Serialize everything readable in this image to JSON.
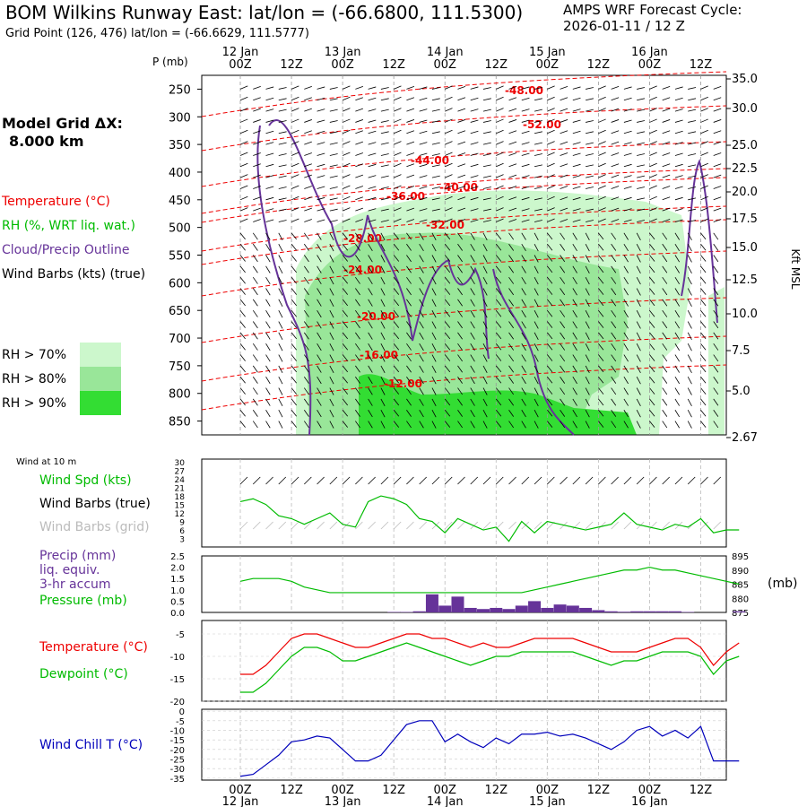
{
  "header": {
    "title": "BOM Wilkins Runway East:  lat/lon = (-66.6800, 111.5300)",
    "cycle_line1": "AMPS WRF Forecast Cycle:",
    "cycle_line2": "2026-01-11 / 12  Z",
    "gridpoint": "Grid Point (126, 476) lat/lon = (-66.6629, 111.5777)"
  },
  "model_grid": {
    "line1": "Model Grid ΔX:",
    "line2": "8.000 km"
  },
  "legend": {
    "temperature": "Temperature (°C)",
    "rh": "RH (%, WRT liq. wat.)",
    "cloud": "Cloud/Precip Outline",
    "wind": "Wind Barbs (kts) (true)",
    "rh70": "RH > 70%",
    "rh80": "RH > 80%",
    "rh90": "RH > 90%"
  },
  "colors": {
    "rh70": "#ccf7cc",
    "rh80": "#99e699",
    "rh90": "#33dd33",
    "temperature": "#ee0000",
    "rh_text": "#00bb00",
    "cloud": "#663399",
    "wind_spd": "#00bb00",
    "precip": "#663399",
    "dewpoint": "#00bb00",
    "windchill": "#0000bb"
  },
  "time_axis": {
    "hour_labels": [
      "00Z",
      "12Z",
      "00Z",
      "12Z",
      "00Z",
      "12Z",
      "00Z",
      "12Z",
      "00Z",
      "12Z"
    ],
    "date_labels": [
      "12 Jan",
      "13 Jan",
      "14 Jan",
      "15 Jan",
      "16 Jan"
    ]
  },
  "panels": {
    "wind10_header": "Wind at 10 m",
    "wind_spd": "Wind Spd (kts)",
    "wind_barbs_true": "Wind Barbs (true)",
    "wind_barbs_grid": "Wind Barbs (grid)",
    "precip1": "Precip (mm)",
    "precip2": "liq. equiv.",
    "precip3": "3-hr accum",
    "pressure": "Pressure (mb)",
    "pressure_unit": "(mb)",
    "temp": "Temperature (°C)",
    "dew": "Dewpoint (°C)",
    "chill": "Wind Chill T (°C)"
  },
  "chart_data": [
    {
      "type": "heatmap",
      "description_of_panel": "cross-section",
      "ylabel_left": "P (mb)",
      "ylabel_right": "Kft MSL",
      "p_ticks": [
        250,
        300,
        350,
        400,
        450,
        500,
        550,
        600,
        650,
        700,
        750,
        800,
        850
      ],
      "kft_ticks": [
        "35.0",
        "30.0",
        "25.0",
        "22.5",
        "20.0",
        "17.5",
        "15.0",
        "12.5",
        "10.0",
        "7.5",
        "5.0",
        "2.67"
      ],
      "temperature_contours": [
        "-48.00",
        "-52.00",
        "-44.00",
        "-40.00",
        "-36.00",
        "-32.00",
        "-28.00",
        "-24.00",
        "-20.00",
        "-16.00",
        "-12.00"
      ]
    },
    {
      "type": "line",
      "title": "Wind Spd (kts)",
      "yticks": [
        3,
        6,
        9,
        12,
        15,
        18,
        21,
        24,
        27,
        30
      ],
      "x_hours": [
        0,
        3,
        6,
        9,
        12,
        15,
        18,
        21,
        24,
        27,
        30,
        33,
        36,
        39,
        42,
        45,
        48,
        51,
        54,
        57,
        60,
        63,
        66,
        69,
        72,
        75,
        78,
        81,
        84,
        87,
        90,
        93,
        96,
        99,
        102,
        105,
        108,
        111,
        114,
        117
      ],
      "values": [
        16,
        17,
        15,
        11,
        10,
        8,
        10,
        12,
        8,
        7,
        16,
        18,
        17,
        15,
        10,
        9,
        5,
        10,
        8,
        6,
        7,
        2,
        9,
        5,
        9,
        8,
        7,
        6,
        7,
        8,
        12,
        8,
        7,
        6,
        8,
        7,
        10,
        5,
        6,
        6
      ]
    },
    {
      "type": "bar",
      "title": "Precip (mm) 3-hr accum / Pressure (mb)",
      "precip_yticks": [
        "0.0",
        "0.5",
        "1.0",
        "1.5",
        "2.0",
        "2.5"
      ],
      "pressure_yticks": [
        875,
        880,
        885,
        890,
        895
      ],
      "precip_values": [
        0,
        0,
        0,
        0,
        0,
        0,
        0,
        0,
        0,
        0,
        0,
        0,
        0.02,
        0.02,
        0.05,
        0.8,
        0.3,
        0.7,
        0.2,
        0.15,
        0.2,
        0.15,
        0.3,
        0.5,
        0.2,
        0.35,
        0.3,
        0.2,
        0.1,
        0.05,
        0.03,
        0.05,
        0.05,
        0.05,
        0.05,
        0.02,
        0,
        0,
        0,
        0.05
      ],
      "pressure_values": [
        886,
        887,
        887,
        887,
        886,
        884,
        883,
        882,
        882,
        882,
        882,
        882,
        882,
        882,
        882,
        882,
        882,
        882,
        882,
        882,
        882,
        882,
        882,
        883,
        884,
        885,
        886,
        887,
        888,
        889,
        890,
        890,
        891,
        890,
        890,
        889,
        888,
        887,
        886,
        885
      ]
    },
    {
      "type": "line",
      "title": "Temperature / Dewpoint (°C)",
      "yticks": [
        -20,
        -15,
        -10,
        -5
      ],
      "temperature": [
        -14,
        -14,
        -12,
        -9,
        -6,
        -5,
        -5,
        -6,
        -7,
        -8,
        -8,
        -7,
        -6,
        -5,
        -5,
        -6,
        -6,
        -7,
        -8,
        -7,
        -8,
        -8,
        -7,
        -6,
        -6,
        -6,
        -6,
        -7,
        -8,
        -9,
        -9,
        -9,
        -8,
        -7,
        -6,
        -6,
        -8,
        -12,
        -9,
        -7
      ],
      "dewpoint": [
        -18,
        -18,
        -16,
        -13,
        -10,
        -8,
        -8,
        -9,
        -11,
        -11,
        -10,
        -9,
        -8,
        -7,
        -8,
        -9,
        -10,
        -11,
        -12,
        -11,
        -10,
        -10,
        -9,
        -9,
        -9,
        -9,
        -9,
        -10,
        -11,
        -12,
        -11,
        -11,
        -10,
        -9,
        -9,
        -9,
        -10,
        -14,
        -11,
        -10
      ]
    },
    {
      "type": "line",
      "title": "Wind Chill T (°C)",
      "yticks": [
        -35,
        -30,
        -25,
        -20,
        -15,
        -10,
        -5,
        0
      ],
      "values": [
        -34,
        -33,
        -28,
        -23,
        -16,
        -15,
        -13,
        -14,
        -20,
        -26,
        -26,
        -23,
        -15,
        -7,
        -5,
        -5,
        -16,
        -12,
        -16,
        -19,
        -14,
        -17,
        -12,
        -12,
        -11,
        -13,
        -12,
        -14,
        -17,
        -20,
        -16,
        -10,
        -8,
        -13,
        -10,
        -14,
        -8,
        -26,
        -26,
        -26
      ]
    }
  ]
}
